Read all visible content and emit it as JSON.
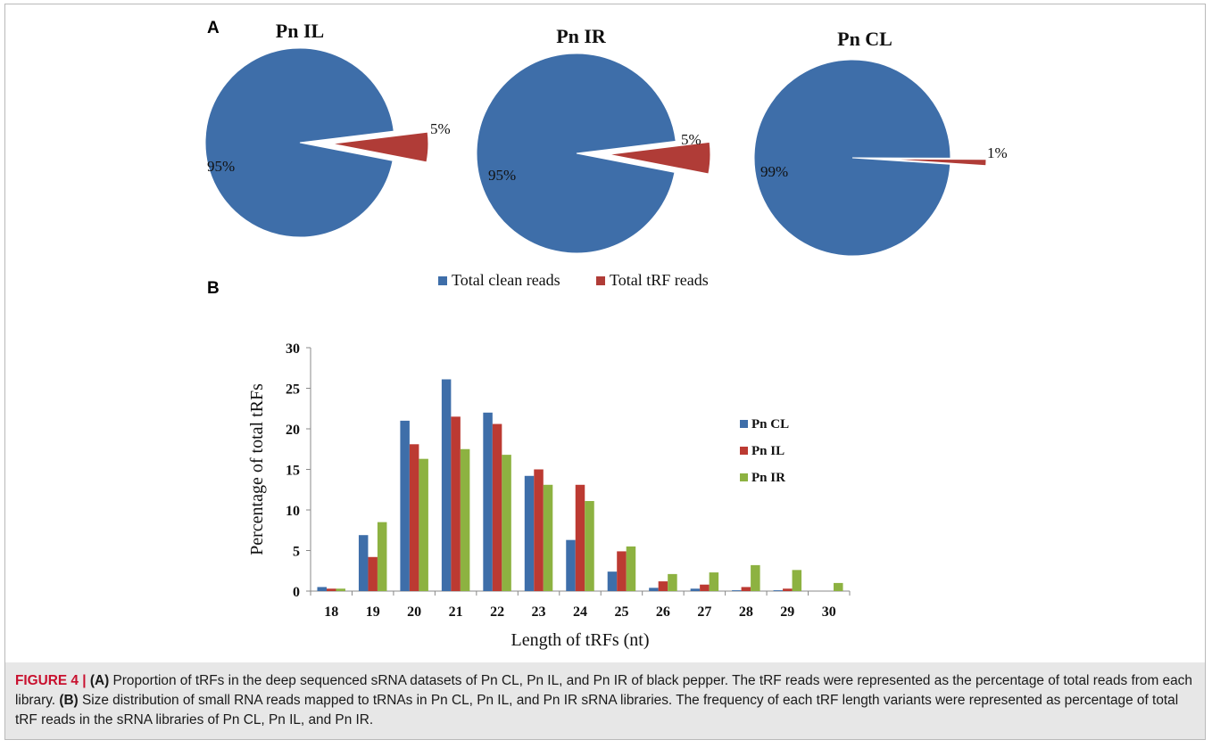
{
  "panel_letters": {
    "a": "A",
    "b": "B"
  },
  "colors": {
    "clean": "#3e6ea9",
    "trf": "#b03c37",
    "pn_cl": "#3e6ea9",
    "pn_il": "#bc3a32",
    "pn_ir": "#8db241",
    "caption_red": "#c8102e",
    "caption_bg": "#e7e7e7"
  },
  "legend_a": {
    "clean": "Total clean reads",
    "trf": "Total tRF reads"
  },
  "chart_data": [
    {
      "type": "pie",
      "title": "Pn IL",
      "labels": [
        "Total clean reads",
        "Total tRF reads"
      ],
      "values": [
        95,
        5
      ],
      "data_labels": [
        "95%",
        "5%"
      ],
      "exploded": "Total tRF reads"
    },
    {
      "type": "pie",
      "title": "Pn IR",
      "labels": [
        "Total clean reads",
        "Total tRF reads"
      ],
      "values": [
        95,
        5
      ],
      "data_labels": [
        "95%",
        "5%"
      ],
      "exploded": "Total tRF reads"
    },
    {
      "type": "pie",
      "title": "Pn CL",
      "labels": [
        "Total clean reads",
        "Total tRF reads"
      ],
      "values": [
        99,
        1
      ],
      "data_labels": [
        "99%",
        "1%"
      ],
      "exploded": "Total tRF reads"
    },
    {
      "type": "bar",
      "title": "",
      "xlabel": "Length of tRFs (nt)",
      "ylabel": "Percentage of total tRFs",
      "ylim": [
        0,
        30
      ],
      "yticks": [
        0,
        5,
        10,
        15,
        20,
        25,
        30
      ],
      "categories": [
        "18",
        "19",
        "20",
        "21",
        "22",
        "23",
        "24",
        "25",
        "26",
        "27",
        "28",
        "29",
        "30"
      ],
      "series": [
        {
          "name": "Pn CL",
          "values": [
            0.5,
            6.9,
            21.0,
            26.1,
            22.0,
            14.2,
            6.3,
            2.4,
            0.4,
            0.3,
            0.1,
            0.1,
            0.0
          ]
        },
        {
          "name": "Pn IL",
          "values": [
            0.3,
            4.2,
            18.1,
            21.5,
            20.6,
            15.0,
            13.1,
            4.9,
            1.2,
            0.8,
            0.5,
            0.3,
            0.0
          ]
        },
        {
          "name": "Pn IR",
          "values": [
            0.3,
            8.5,
            16.3,
            17.5,
            16.8,
            13.1,
            11.1,
            5.5,
            2.1,
            2.3,
            3.2,
            2.6,
            1.0
          ]
        }
      ],
      "legend_position": "right",
      "grid": false
    }
  ],
  "caption": {
    "label": "FIGURE 4 |",
    "part_a_tag": "(A)",
    "part_a_text": " Proportion of tRFs in the deep sequenced sRNA datasets of Pn CL, Pn IL, and Pn IR of black pepper. The tRF reads were represented as the percentage of total reads from each library. ",
    "part_b_tag": "(B)",
    "part_b_text": " Size distribution of small RNA reads mapped to tRNAs in Pn CL, Pn IL, and Pn IR sRNA libraries. The frequency of each tRF length variants were represented as percentage of total tRF reads in the sRNA libraries of Pn CL, Pn IL, and Pn IR."
  }
}
